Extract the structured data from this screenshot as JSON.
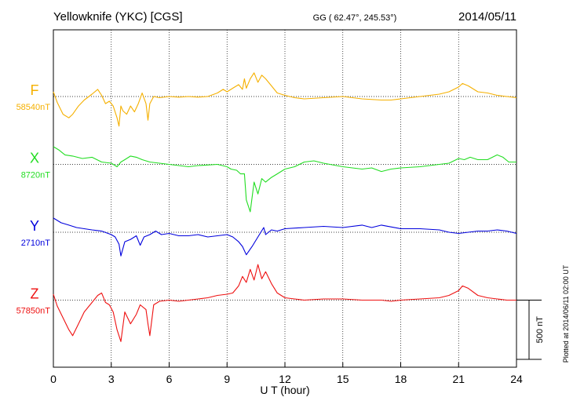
{
  "header": {
    "station": "Yellowknife (YKC)  [CGS]",
    "coords": "GG ( 62.47°, 245.53°)",
    "date": "2014/05/11"
  },
  "footer": {
    "plotted": "Plotted at 2014/06/11 02:00 UT"
  },
  "chart_data": {
    "type": "line",
    "title": "Yellowknife (YKC)  [CGS]",
    "xlabel": "U T (hour)",
    "xlim": [
      0,
      24
    ],
    "xticks": [
      0,
      3,
      6,
      9,
      12,
      15,
      18,
      21,
      24
    ],
    "xtick_labels": [
      "0",
      "3",
      "6",
      "9",
      "12",
      "15",
      "18",
      "21",
      "24"
    ],
    "ylim_nT": [
      -1400,
      1450
    ],
    "scale_bar": {
      "label": "500 nT",
      "value_nT": 500
    },
    "grid": "dotted",
    "series": [
      {
        "name": "F",
        "baseline_label": "58540nT",
        "baseline_nT": 0,
        "color": "#f5b000",
        "x": [
          0,
          0.2,
          0.5,
          0.8,
          1.0,
          1.3,
          1.6,
          2.0,
          2.3,
          2.5,
          2.7,
          2.9,
          3.1,
          3.3,
          3.4,
          3.5,
          3.6,
          3.8,
          4.0,
          4.2,
          4.4,
          4.6,
          4.8,
          4.9,
          5.0,
          5.2,
          5.5,
          6.0,
          6.5,
          7.0,
          7.5,
          8.0,
          8.5,
          8.8,
          9.0,
          9.3,
          9.6,
          9.8,
          9.9,
          10.0,
          10.2,
          10.4,
          10.6,
          10.8,
          11.0,
          11.3,
          11.6,
          12.0,
          12.5,
          13.0,
          14.0,
          15.0,
          16.0,
          17.0,
          17.5,
          18.0,
          19.0,
          20.0,
          20.5,
          21.0,
          21.2,
          21.5,
          22.0,
          22.5,
          23.0,
          23.5,
          24.0
        ],
        "values": [
          40,
          -50,
          -150,
          -180,
          -150,
          -80,
          -30,
          20,
          60,
          10,
          -60,
          -40,
          -80,
          -180,
          -250,
          -80,
          -120,
          -150,
          -80,
          -130,
          -60,
          30,
          -60,
          -200,
          -60,
          0,
          -10,
          0,
          -5,
          0,
          -5,
          0,
          30,
          60,
          40,
          70,
          100,
          60,
          150,
          70,
          150,
          200,
          120,
          180,
          150,
          90,
          30,
          10,
          -10,
          -20,
          -10,
          0,
          -20,
          -30,
          -30,
          -20,
          0,
          20,
          40,
          80,
          110,
          90,
          40,
          30,
          10,
          0,
          -10
        ]
      },
      {
        "name": "X",
        "baseline_label": "8720nT",
        "baseline_nT": 0,
        "color": "#22dd22",
        "x": [
          0,
          0.3,
          0.6,
          1.0,
          1.5,
          2.0,
          2.5,
          3.0,
          3.3,
          3.4,
          3.5,
          3.7,
          4.0,
          4.3,
          4.6,
          5.0,
          5.5,
          6.0,
          6.5,
          7.0,
          7.5,
          8.0,
          8.5,
          9.0,
          9.2,
          9.5,
          9.7,
          9.9,
          10.0,
          10.2,
          10.4,
          10.6,
          10.8,
          11.0,
          11.3,
          11.6,
          12.0,
          12.5,
          13.0,
          13.5,
          14.0,
          15.0,
          16.0,
          16.5,
          17.0,
          17.5,
          18.0,
          19.0,
          20.0,
          20.5,
          21.0,
          21.3,
          21.6,
          22.0,
          22.5,
          23.0,
          23.3,
          23.6,
          24.0
        ],
        "values": [
          150,
          120,
          80,
          70,
          50,
          60,
          20,
          10,
          -20,
          0,
          20,
          40,
          70,
          60,
          40,
          20,
          10,
          0,
          -10,
          -20,
          -10,
          -5,
          0,
          -20,
          -40,
          -50,
          -80,
          -80,
          -300,
          -400,
          -150,
          -250,
          -120,
          -150,
          -110,
          -80,
          -40,
          -20,
          20,
          30,
          10,
          -20,
          -40,
          -30,
          -60,
          -40,
          -30,
          -20,
          0,
          10,
          50,
          40,
          60,
          40,
          40,
          80,
          60,
          20,
          20
        ]
      },
      {
        "name": "Y",
        "baseline_label": "2710nT",
        "baseline_nT": 0,
        "color": "#0000dd",
        "x": [
          0,
          0.4,
          0.8,
          1.2,
          1.6,
          2.0,
          2.5,
          3.0,
          3.2,
          3.4,
          3.5,
          3.7,
          4.0,
          4.3,
          4.5,
          4.7,
          5.0,
          5.3,
          5.6,
          6.0,
          6.5,
          7.0,
          7.5,
          8.0,
          8.5,
          9.0,
          9.3,
          9.6,
          9.8,
          10.0,
          10.3,
          10.6,
          10.9,
          11.0,
          11.3,
          11.6,
          12.0,
          13.0,
          14.0,
          15.0,
          16.0,
          16.5,
          17.0,
          18.0,
          19.0,
          20.0,
          20.5,
          21.0,
          21.5,
          22.0,
          22.5,
          23.0,
          23.5,
          24.0
        ],
        "values": [
          120,
          80,
          60,
          40,
          30,
          20,
          10,
          -20,
          -40,
          -100,
          -200,
          -80,
          -60,
          -30,
          -110,
          -40,
          -20,
          10,
          -20,
          -10,
          -30,
          -30,
          -20,
          -40,
          -30,
          -20,
          -40,
          -80,
          -120,
          -190,
          -120,
          -40,
          40,
          -20,
          20,
          10,
          30,
          40,
          50,
          40,
          60,
          40,
          60,
          30,
          30,
          20,
          0,
          -10,
          0,
          10,
          10,
          20,
          10,
          -10
        ]
      },
      {
        "name": "Z",
        "baseline_label": "57850nT",
        "baseline_nT": 0,
        "color": "#ee1111",
        "x": [
          0,
          0.2,
          0.5,
          0.8,
          1.0,
          1.3,
          1.6,
          2.0,
          2.3,
          2.5,
          2.7,
          2.9,
          3.1,
          3.3,
          3.5,
          3.7,
          4.0,
          4.3,
          4.5,
          4.8,
          4.9,
          5.0,
          5.2,
          5.5,
          6.0,
          6.5,
          7.0,
          7.5,
          8.0,
          8.5,
          9.0,
          9.3,
          9.6,
          9.8,
          10.0,
          10.2,
          10.4,
          10.6,
          10.8,
          11.0,
          11.3,
          11.6,
          12.0,
          12.5,
          13.0,
          14.0,
          15.0,
          16.0,
          17.0,
          17.5,
          18.0,
          19.0,
          20.0,
          20.5,
          21.0,
          21.2,
          21.5,
          22.0,
          22.5,
          23.0,
          23.5,
          24.0
        ],
        "values": [
          50,
          -50,
          -150,
          -250,
          -300,
          -200,
          -100,
          -20,
          40,
          60,
          -20,
          -40,
          -100,
          -250,
          -350,
          -100,
          -200,
          -120,
          -40,
          -80,
          -200,
          -300,
          -40,
          -10,
          0,
          -10,
          0,
          10,
          20,
          40,
          50,
          60,
          120,
          200,
          150,
          260,
          170,
          300,
          180,
          240,
          140,
          60,
          20,
          10,
          0,
          10,
          10,
          0,
          0,
          -10,
          0,
          10,
          20,
          40,
          80,
          120,
          100,
          40,
          20,
          10,
          0,
          0
        ]
      }
    ]
  }
}
